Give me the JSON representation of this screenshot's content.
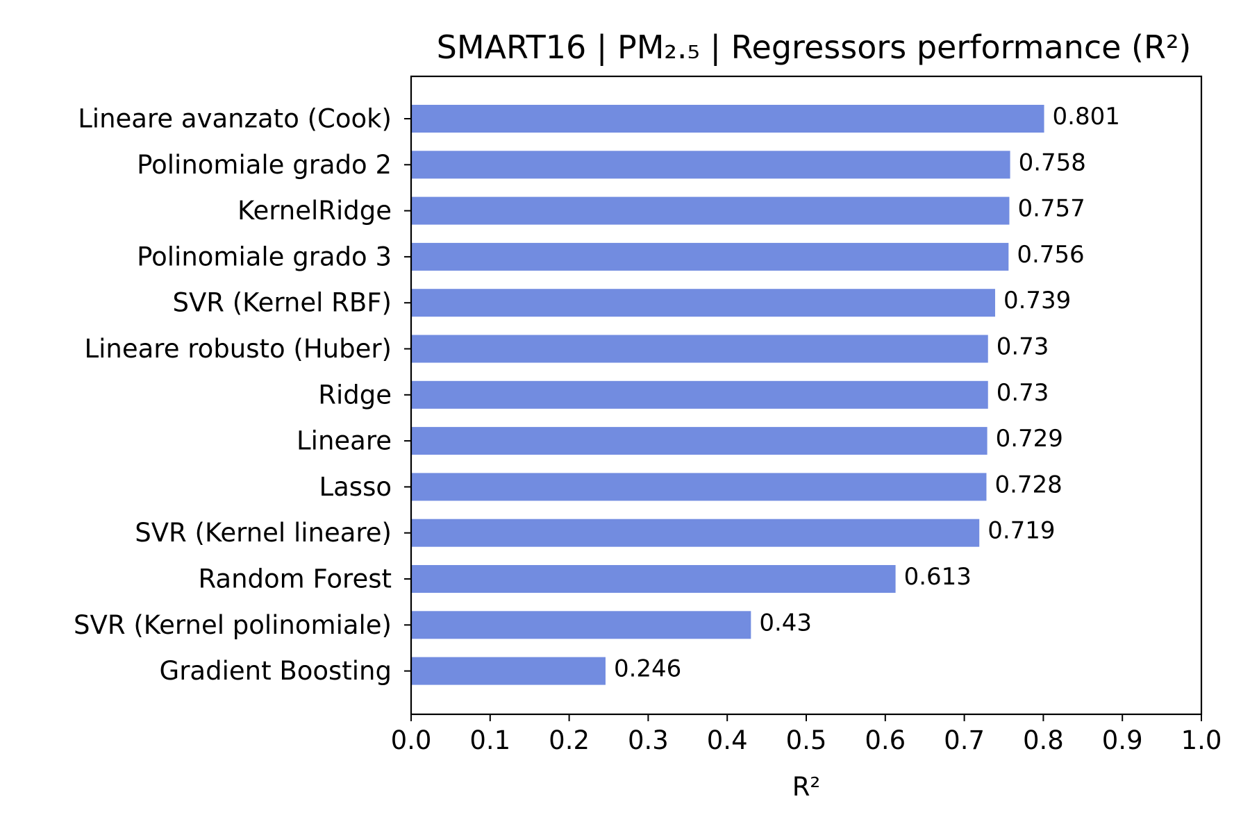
{
  "chart_data": {
    "type": "bar",
    "orientation": "horizontal",
    "title": "SMART16 | PM₂.₅ | Regressors performance (R²)",
    "xlabel": "R²",
    "ylabel": "",
    "xlim": [
      0.0,
      1.0
    ],
    "xticks": [
      "0.0",
      "0.1",
      "0.2",
      "0.3",
      "0.4",
      "0.5",
      "0.6",
      "0.7",
      "0.8",
      "0.9",
      "1.0"
    ],
    "grid": false,
    "bar_color": "#728ce0",
    "categories": [
      "Lineare avanzato (Cook)",
      "Polinomiale grado 2",
      "KernelRidge",
      "Polinomiale grado 3",
      "SVR (Kernel RBF)",
      "Lineare robusto (Huber)",
      "Ridge",
      "Lineare",
      "Lasso",
      "SVR (Kernel lineare)",
      "Random Forest",
      "SVR (Kernel polinomiale)",
      "Gradient Boosting"
    ],
    "values": [
      0.801,
      0.758,
      0.757,
      0.756,
      0.739,
      0.73,
      0.73,
      0.729,
      0.728,
      0.719,
      0.613,
      0.43,
      0.246
    ],
    "data_labels": [
      "0.801",
      "0.758",
      "0.757",
      "0.756",
      "0.739",
      "0.73",
      "0.73",
      "0.729",
      "0.728",
      "0.719",
      "0.613",
      "0.43",
      "0.246"
    ]
  }
}
